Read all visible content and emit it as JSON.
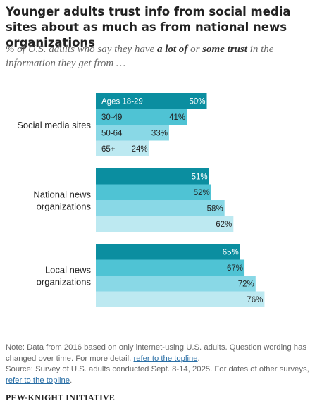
{
  "title": "Younger adults trust info from social media sites about as much as from national news organizations",
  "subtitle": {
    "pre": "% of U.S. adults who say they have ",
    "bold1": "a lot of",
    "mid": " or ",
    "bold2": "some trust",
    "post": " in the information they get from …"
  },
  "colors": [
    "#0b8ea0",
    "#4fc3d4",
    "#89d8e6",
    "#bde9f1"
  ],
  "chart_data": {
    "type": "bar",
    "title": "",
    "xlabel": "",
    "ylabel": "",
    "categories": [
      "Social media sites",
      "National news organizations",
      "Local news organizations"
    ],
    "category_lines": [
      [
        "Social media sites"
      ],
      [
        "National news",
        "organizations"
      ],
      [
        "Local news",
        "organizations"
      ]
    ],
    "series": [
      {
        "name": "Ages 18-29",
        "values": [
          50,
          51,
          65
        ]
      },
      {
        "name": "30-49",
        "values": [
          41,
          52,
          67
        ]
      },
      {
        "name": "50-64",
        "values": [
          33,
          58,
          72
        ]
      },
      {
        "name": "65+",
        "values": [
          24,
          62,
          76
        ]
      }
    ],
    "value_suffix": "%",
    "xlim": [
      0,
      100
    ],
    "legend": "inline labels inside first group"
  },
  "note": {
    "line1": "Note: Data from 2016 based on only internet-using U.S. adults. Question wording has changed over time. For more detail, ",
    "link1": "refer to the topline",
    "line2": "Source: Survey of U.S. adults conducted Sept. 8-14, 2025. For dates of other surveys, ",
    "link2": "refer to the topline"
  },
  "brand": "PEW-KNIGHT INITIATIVE"
}
